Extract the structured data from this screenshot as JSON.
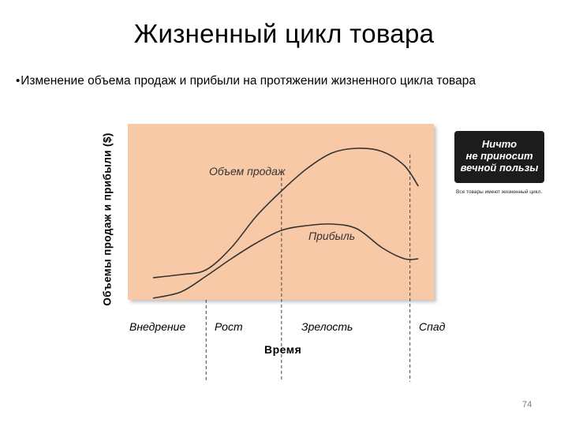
{
  "slide": {
    "title": "Жизненный цикл товара",
    "bullet": "•",
    "subtitle": "Изменение объема продаж и прибыли на протяжении жизненного цикла товара",
    "page_number": "74"
  },
  "stamp": {
    "text": "Ничто не приносит вечной пользы",
    "caption": "Все товары имеют жизненный цикл."
  },
  "chart_data": {
    "type": "line",
    "title": "",
    "xlabel": "Время",
    "ylabel": "Объемы продаж и прибыли ($)",
    "phases": [
      "Внедрение",
      "Рост",
      "Зрелость",
      "Спад"
    ],
    "x_range": [
      0,
      100
    ],
    "y_range": [
      0,
      100
    ],
    "plot_background": "#f8c9a6",
    "phase_boundaries_x": [
      19,
      46,
      92
    ],
    "series": [
      {
        "name": "Объем продаж",
        "color": "#333333",
        "x": [
          0,
          10,
          19,
          28,
          37,
          46,
          55,
          64,
          73,
          82,
          90,
          95
        ],
        "y": [
          13,
          15,
          18,
          32,
          52,
          68,
          82,
          92,
          95,
          93,
          84,
          71
        ]
      },
      {
        "name": "Прибыль",
        "color": "#333333",
        "x": [
          0,
          10,
          19,
          28,
          37,
          46,
          55,
          64,
          73,
          82,
          90,
          95
        ],
        "y": [
          0,
          4,
          14,
          25,
          35,
          43,
          46,
          47,
          44,
          32,
          25,
          25
        ]
      }
    ]
  }
}
